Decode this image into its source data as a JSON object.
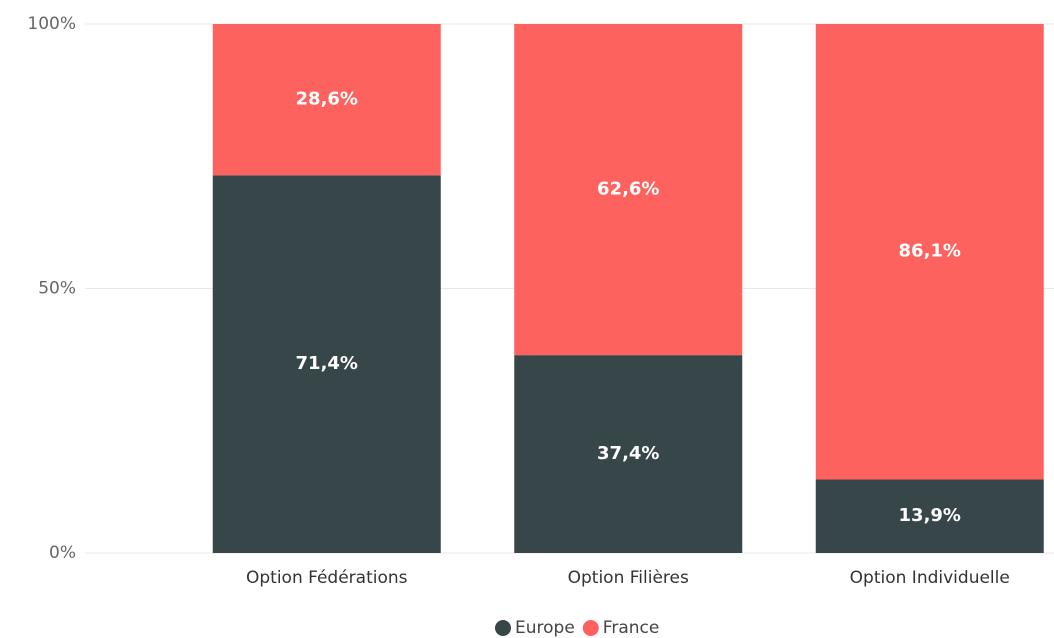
{
  "chart_data": {
    "type": "stacked_bar_100",
    "categories": [
      "Option Fédérations",
      "Option Filières",
      "Option Individuelle"
    ],
    "series": [
      {
        "name": "Europe",
        "color": "#374649",
        "values": [
          71.4,
          37.4,
          13.9
        ],
        "value_labels": [
          "71,4%",
          "37,4%",
          "13,9%"
        ]
      },
      {
        "name": "France",
        "color": "#fd625e",
        "values": [
          28.6,
          62.6,
          86.1
        ],
        "value_labels": [
          "28,6%",
          "62,6%",
          "86,1%"
        ]
      }
    ],
    "ylim": [
      0,
      100
    ],
    "yticks": [
      {
        "value": 0,
        "label": "0%"
      },
      {
        "value": 50,
        "label": "50%"
      },
      {
        "value": 100,
        "label": "100%"
      }
    ],
    "grid": true,
    "legend": "bottom"
  }
}
